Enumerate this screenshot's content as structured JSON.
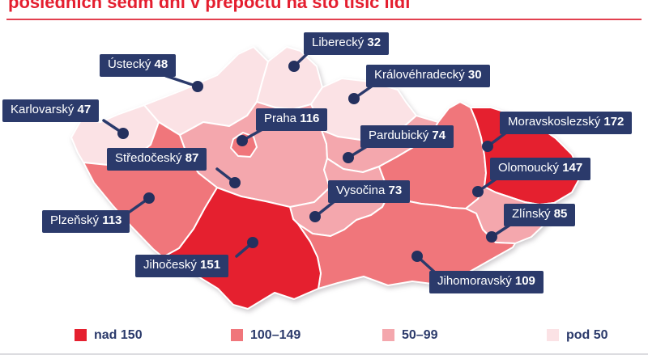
{
  "title": "posledních sedm dní v přepočtu na sto tisíc lidí",
  "colors": {
    "navy_box": "#2b3a6b",
    "navy_dot": "#24305e",
    "title_red": "#e41e2f",
    "title_rule_red": "#e2404f",
    "bottom_rule_gray": "#dcdce0"
  },
  "chart_data": {
    "type": "heatmap",
    "subtype": "choropleth-map-of-czech-regions",
    "title": "posledních sedm dní v přepočtu na sto tisíc lidí",
    "legend_position": "bottom",
    "bins": [
      {
        "id": "nad150",
        "label": "nad 150",
        "color": "#e5202f"
      },
      {
        "id": "k100_149",
        "label": "100–149",
        "color": "#f0767b"
      },
      {
        "id": "k50_99",
        "label": "50–99",
        "color": "#f4a7ad"
      },
      {
        "id": "pod50",
        "label": "pod 50",
        "color": "#fbe2e5"
      }
    ],
    "regions": [
      {
        "id": "liberecky",
        "name": "Liberecký",
        "value": 32,
        "bin": "pod50"
      },
      {
        "id": "ustecky",
        "name": "Ústecký",
        "value": 48,
        "bin": "pod50"
      },
      {
        "id": "kralovehradecky",
        "name": "Královéhradecký",
        "value": 30,
        "bin": "pod50"
      },
      {
        "id": "karlovarsky",
        "name": "Karlovarský",
        "value": 47,
        "bin": "pod50"
      },
      {
        "id": "praha",
        "name": "Praha",
        "value": 116,
        "bin": "k100_149"
      },
      {
        "id": "moravskoslezsky",
        "name": "Moravskoslezský",
        "value": 172,
        "bin": "nad150"
      },
      {
        "id": "pardubicky",
        "name": "Pardubický",
        "value": 74,
        "bin": "k50_99"
      },
      {
        "id": "stredocesky",
        "name": "Středočeský",
        "value": 87,
        "bin": "k50_99"
      },
      {
        "id": "olomoucky",
        "name": "Olomoucký",
        "value": 147,
        "bin": "k100_149"
      },
      {
        "id": "vysocina",
        "name": "Vysočina",
        "value": 73,
        "bin": "k50_99"
      },
      {
        "id": "zlinsky",
        "name": "Zlínský",
        "value": 85,
        "bin": "k50_99"
      },
      {
        "id": "plzensky",
        "name": "Plzeňský",
        "value": 113,
        "bin": "k100_149"
      },
      {
        "id": "jihocesky",
        "name": "Jihočeský",
        "value": 151,
        "bin": "nad150"
      },
      {
        "id": "jihomoravsky",
        "name": "Jihomoravský",
        "value": 109,
        "bin": "k100_149"
      }
    ]
  }
}
